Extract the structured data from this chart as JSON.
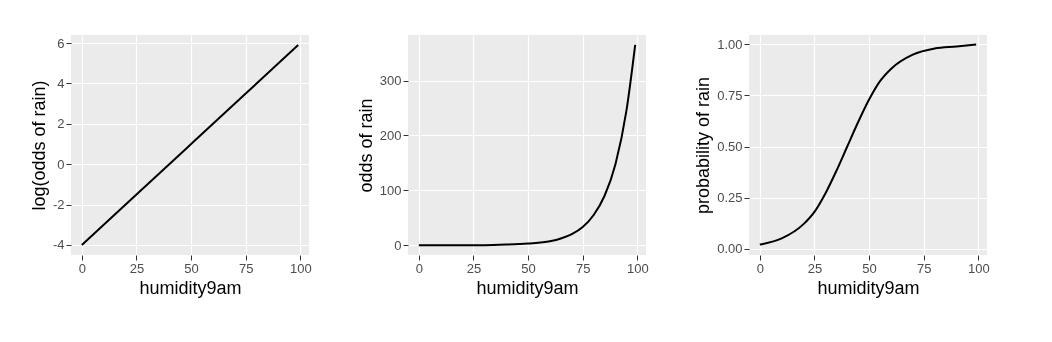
{
  "chart_data": [
    {
      "type": "line",
      "xlabel": "humidity9am",
      "ylabel": "log(odds of rain)",
      "color": "#000000",
      "grid": true,
      "x": [
        0,
        25,
        50,
        75,
        99
      ],
      "values": [
        -4,
        -1.5,
        1,
        3.5,
        5.9
      ],
      "xlim": [
        -4.95,
        103.95
      ],
      "ylim": [
        -4.5,
        6.4
      ],
      "xticks": [
        0,
        25,
        50,
        75,
        100
      ],
      "yticks": [
        -4,
        -2,
        0,
        2,
        4,
        6
      ]
    },
    {
      "type": "line",
      "xlabel": "humidity9am",
      "ylabel": "odds of rain",
      "color": "#000000",
      "grid": true,
      "x": [
        0,
        10,
        20,
        30,
        40,
        50,
        60,
        65,
        70,
        75,
        80,
        85,
        90,
        95,
        99
      ],
      "values": [
        0,
        0,
        0,
        0,
        1,
        3,
        7,
        12,
        20,
        33,
        55,
        90,
        148,
        245,
        365
      ],
      "xlim": [
        -4.95,
        103.95
      ],
      "ylim": [
        -18,
        383
      ],
      "xticks": [
        0,
        25,
        50,
        75,
        100
      ],
      "yticks": [
        0,
        100,
        200,
        300
      ]
    },
    {
      "type": "line",
      "xlabel": "humidity9am",
      "ylabel": "probability of rain",
      "color": "#000000",
      "grid": true,
      "x": [
        0,
        10,
        20,
        25,
        30,
        35,
        40,
        45,
        50,
        55,
        60,
        70,
        80,
        90,
        99
      ],
      "values": [
        0.02,
        0.05,
        0.12,
        0.18,
        0.27,
        0.38,
        0.5,
        0.62,
        0.73,
        0.82,
        0.88,
        0.95,
        0.98,
        0.99,
        1.0
      ],
      "xlim": [
        -4.95,
        103.95
      ],
      "ylim": [
        -0.031,
        1.046
      ],
      "xticks": [
        0,
        25,
        50,
        75,
        100
      ],
      "yticks": [
        {
          "value": 0,
          "label": "0.00"
        },
        {
          "value": 0.25,
          "label": "0.25"
        },
        {
          "value": 0.5,
          "label": "0.50"
        },
        {
          "value": 0.75,
          "label": "0.75"
        },
        {
          "value": 1,
          "label": "1.00"
        }
      ]
    }
  ]
}
